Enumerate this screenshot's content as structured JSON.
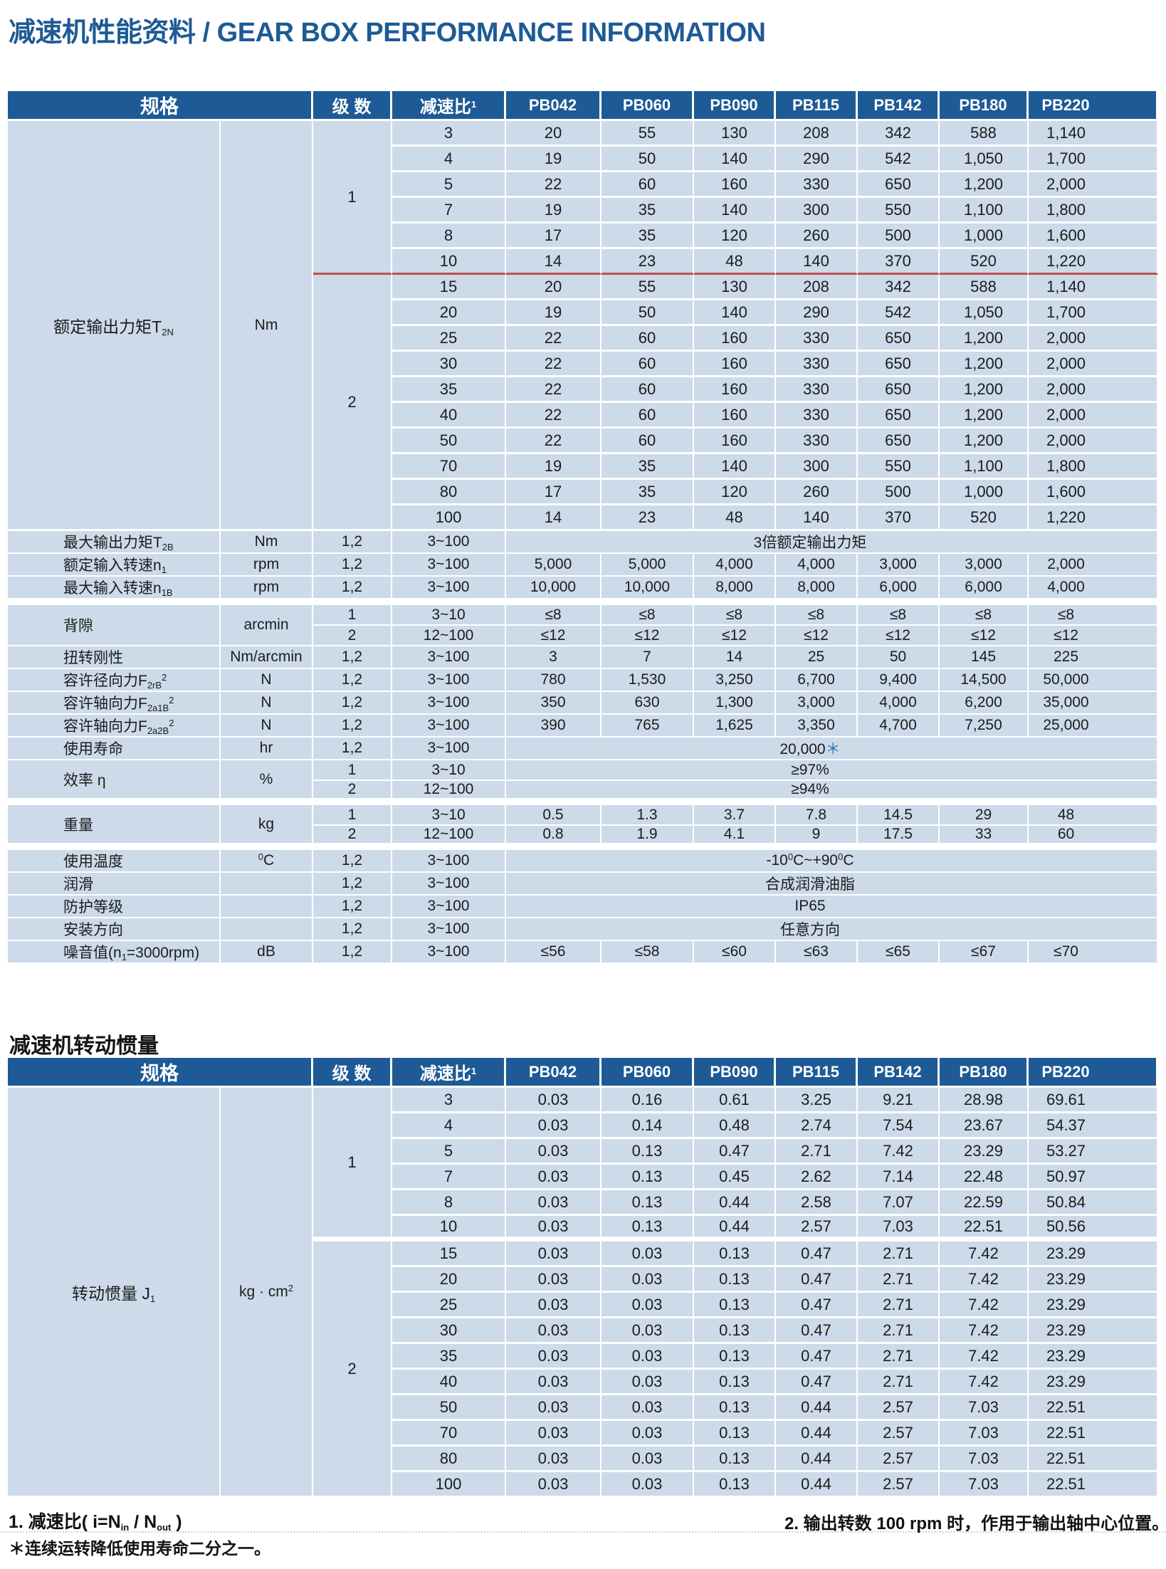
{
  "title": {
    "text": "减速机性能资料 / GEAR BOX PERFORMANCE INFORMATION"
  },
  "colors": {
    "header_blue": "#1d5a96",
    "row_blue": "#ccdae9",
    "red_line": "#c0504d",
    "accent_blue": "#2f74b5",
    "title_blue": "#1d5a96"
  },
  "columns": {
    "spec": "规格",
    "stages": "级 数",
    "ratio": [
      "减速比",
      {
        "sup": "1"
      }
    ],
    "models": [
      "PB042",
      "PB060",
      "PB090",
      "PB115",
      "PB142",
      "PB180",
      "PB220"
    ]
  },
  "table1": {
    "torque": {
      "label": [
        "额定输出力矩T",
        {
          "sub": "2N"
        }
      ],
      "unit": "Nm",
      "groups": [
        {
          "stage": "1",
          "rows": [
            {
              "ratio": "3",
              "values": [
                "20",
                "55",
                "130",
                "208",
                "342",
                "588",
                "1,140"
              ]
            },
            {
              "ratio": "4",
              "values": [
                "19",
                "50",
                "140",
                "290",
                "542",
                "1,050",
                "1,700"
              ]
            },
            {
              "ratio": "5",
              "values": [
                "22",
                "60",
                "160",
                "330",
                "650",
                "1,200",
                "2,000"
              ]
            },
            {
              "ratio": "7",
              "values": [
                "19",
                "35",
                "140",
                "300",
                "550",
                "1,100",
                "1,800"
              ]
            },
            {
              "ratio": "8",
              "values": [
                "17",
                "35",
                "120",
                "260",
                "500",
                "1,000",
                "1,600"
              ]
            },
            {
              "ratio": "10",
              "values": [
                "14",
                "23",
                "48",
                "140",
                "370",
                "520",
                "1,220"
              ]
            }
          ]
        },
        {
          "stage": "2",
          "rows": [
            {
              "ratio": "15",
              "values": [
                "20",
                "55",
                "130",
                "208",
                "342",
                "588",
                "1,140"
              ]
            },
            {
              "ratio": "20",
              "values": [
                "19",
                "50",
                "140",
                "290",
                "542",
                "1,050",
                "1,700"
              ]
            },
            {
              "ratio": "25",
              "values": [
                "22",
                "60",
                "160",
                "330",
                "650",
                "1,200",
                "2,000"
              ]
            },
            {
              "ratio": "30",
              "values": [
                "22",
                "60",
                "160",
                "330",
                "650",
                "1,200",
                "2,000"
              ]
            },
            {
              "ratio": "35",
              "values": [
                "22",
                "60",
                "160",
                "330",
                "650",
                "1,200",
                "2,000"
              ]
            },
            {
              "ratio": "40",
              "values": [
                "22",
                "60",
                "160",
                "330",
                "650",
                "1,200",
                "2,000"
              ]
            },
            {
              "ratio": "50",
              "values": [
                "22",
                "60",
                "160",
                "330",
                "650",
                "1,200",
                "2,000"
              ]
            },
            {
              "ratio": "70",
              "values": [
                "19",
                "35",
                "140",
                "300",
                "550",
                "1,100",
                "1,800"
              ]
            },
            {
              "ratio": "80",
              "values": [
                "17",
                "35",
                "120",
                "260",
                "500",
                "1,000",
                "1,600"
              ]
            },
            {
              "ratio": "100",
              "values": [
                "14",
                "23",
                "48",
                "140",
                "370",
                "520",
                "1,220"
              ]
            }
          ]
        }
      ]
    },
    "specs": [
      {
        "label": [
          "最大输出力矩T",
          {
            "sub": "2B"
          }
        ],
        "unit": "Nm",
        "stage": "1,2",
        "ratio": "3~100",
        "merged": "3倍额定输出力矩"
      },
      {
        "label": [
          "额定输入转速n",
          {
            "sub": "1"
          }
        ],
        "unit": "rpm",
        "stage": "1,2",
        "ratio": "3~100",
        "values": [
          "5,000",
          "5,000",
          "4,000",
          "4,000",
          "3,000",
          "3,000",
          "2,000"
        ]
      },
      {
        "label": [
          "最大输入转速n",
          {
            "sub": "1B"
          }
        ],
        "unit": "rpm",
        "stage": "1,2",
        "ratio": "3~100",
        "values": [
          "10,000",
          "10,000",
          "8,000",
          "8,000",
          "6,000",
          "6,000",
          "4,000"
        ],
        "gap": true
      },
      {
        "label": "背隙",
        "unit": "arcmin",
        "subrows": [
          {
            "stage": "1",
            "ratio": "3~10",
            "values": [
              "≤8",
              "≤8",
              "≤8",
              "≤8",
              "≤8",
              "≤8",
              "≤8"
            ]
          },
          {
            "stage": "2",
            "ratio": "12~100",
            "values": [
              "≤12",
              "≤12",
              "≤12",
              "≤12",
              "≤12",
              "≤12",
              "≤12"
            ]
          }
        ]
      },
      {
        "label": "扭转刚性",
        "unit": "Nm/arcmin",
        "stage": "1,2",
        "ratio": "3~100",
        "values": [
          "3",
          "7",
          "14",
          "25",
          "50",
          "145",
          "225"
        ]
      },
      {
        "label": [
          "容许径向力F",
          {
            "sub": "2rB"
          },
          {
            "sup": "2"
          }
        ],
        "unit": "N",
        "stage": "1,2",
        "ratio": "3~100",
        "values": [
          "780",
          "1,530",
          "3,250",
          "6,700",
          "9,400",
          "14,500",
          "50,000"
        ]
      },
      {
        "label": [
          "容许轴向力F",
          {
            "sub": "2a1B"
          },
          {
            "sup": "2"
          }
        ],
        "unit": "N",
        "stage": "1,2",
        "ratio": "3~100",
        "values": [
          "350",
          "630",
          "1,300",
          "3,000",
          "4,000",
          "6,200",
          "35,000"
        ]
      },
      {
        "label": [
          "容许轴向力F",
          {
            "sub": "2a2B"
          },
          {
            "sup": "2"
          }
        ],
        "unit": "N",
        "stage": "1,2",
        "ratio": "3~100",
        "values": [
          "390",
          "765",
          "1,625",
          "3,350",
          "4,700",
          "7,250",
          "25,000"
        ]
      },
      {
        "label": "使用寿命",
        "unit": "hr",
        "stage": "1,2",
        "ratio": "3~100",
        "merged": [
          "20,000",
          {
            "accent": "＊"
          }
        ]
      },
      {
        "label": "效率 η",
        "unit": "%",
        "subrows": [
          {
            "stage": "1",
            "ratio": "3~10",
            "merged": "≥97%"
          },
          {
            "stage": "2",
            "ratio": "12~100",
            "merged": "≥94%"
          }
        ],
        "gap": true
      },
      {
        "label": "重量",
        "unit": "kg",
        "subrows": [
          {
            "stage": "1",
            "ratio": "3~10",
            "values": [
              "0.5",
              "1.3",
              "3.7",
              "7.8",
              "14.5",
              "29",
              "48"
            ]
          },
          {
            "stage": "2",
            "ratio": "12~100",
            "values": [
              "0.8",
              "1.9",
              "4.1",
              "9",
              "17.5",
              "33",
              "60"
            ]
          }
        ],
        "gap": true
      },
      {
        "label": "使用温度",
        "unit": [
          {
            "sup": "0"
          },
          "C"
        ],
        "stage": "1,2",
        "ratio": "3~100",
        "merged": [
          "-10",
          {
            "sup": "0"
          },
          "C~+90",
          {
            "sup": "0"
          },
          "C"
        ]
      },
      {
        "label": "润滑",
        "unit": "",
        "stage": "1,2",
        "ratio": "3~100",
        "merged": "合成润滑油脂"
      },
      {
        "label": "防护等级",
        "unit": "",
        "stage": "1,2",
        "ratio": "3~100",
        "merged": "IP65"
      },
      {
        "label": "安装方向",
        "unit": "",
        "stage": "1,2",
        "ratio": "3~100",
        "merged": "任意方向"
      },
      {
        "label": [
          "噪音值(n",
          {
            "sub": "1"
          },
          "=3000rpm)"
        ],
        "unit": "dB",
        "stage": "1,2",
        "ratio": "3~100",
        "values": [
          "≤56",
          "≤58",
          "≤60",
          "≤63",
          "≤65",
          "≤67",
          "≤70"
        ]
      }
    ]
  },
  "table2": {
    "title": "减速机转动惯量",
    "inertia": {
      "label": [
        "转动惯量 J",
        {
          "sub": "1"
        }
      ],
      "unit": [
        "kg · cm",
        {
          "sup": "2"
        }
      ],
      "groups": [
        {
          "stage": "1",
          "rows": [
            {
              "ratio": "3",
              "values": [
                "0.03",
                "0.16",
                "0.61",
                "3.25",
                "9.21",
                "28.98",
                "69.61"
              ]
            },
            {
              "ratio": "4",
              "values": [
                "0.03",
                "0.14",
                "0.48",
                "2.74",
                "7.54",
                "23.67",
                "54.37"
              ]
            },
            {
              "ratio": "5",
              "values": [
                "0.03",
                "0.13",
                "0.47",
                "2.71",
                "7.42",
                "23.29",
                "53.27"
              ]
            },
            {
              "ratio": "7",
              "values": [
                "0.03",
                "0.13",
                "0.45",
                "2.62",
                "7.14",
                "22.48",
                "50.97"
              ]
            },
            {
              "ratio": "8",
              "values": [
                "0.03",
                "0.13",
                "0.44",
                "2.58",
                "7.07",
                "22.59",
                "50.84"
              ]
            },
            {
              "ratio": "10",
              "values": [
                "0.03",
                "0.13",
                "0.44",
                "2.57",
                "7.03",
                "22.51",
                "50.56"
              ]
            }
          ]
        },
        {
          "stage": "2",
          "rows": [
            {
              "ratio": "15",
              "values": [
                "0.03",
                "0.03",
                "0.13",
                "0.47",
                "2.71",
                "7.42",
                "23.29"
              ]
            },
            {
              "ratio": "20",
              "values": [
                "0.03",
                "0.03",
                "0.13",
                "0.47",
                "2.71",
                "7.42",
                "23.29"
              ]
            },
            {
              "ratio": "25",
              "values": [
                "0.03",
                "0.03",
                "0.13",
                "0.47",
                "2.71",
                "7.42",
                "23.29"
              ]
            },
            {
              "ratio": "30",
              "values": [
                "0.03",
                "0.03",
                "0.13",
                "0.47",
                "2.71",
                "7.42",
                "23.29"
              ]
            },
            {
              "ratio": "35",
              "values": [
                "0.03",
                "0.03",
                "0.13",
                "0.47",
                "2.71",
                "7.42",
                "23.29"
              ]
            },
            {
              "ratio": "40",
              "values": [
                "0.03",
                "0.03",
                "0.13",
                "0.47",
                "2.71",
                "7.42",
                "23.29"
              ]
            },
            {
              "ratio": "50",
              "values": [
                "0.03",
                "0.03",
                "0.13",
                "0.44",
                "2.57",
                "7.03",
                "22.51"
              ]
            },
            {
              "ratio": "70",
              "values": [
                "0.03",
                "0.03",
                "0.13",
                "0.44",
                "2.57",
                "7.03",
                "22.51"
              ]
            },
            {
              "ratio": "80",
              "values": [
                "0.03",
                "0.03",
                "0.13",
                "0.44",
                "2.57",
                "7.03",
                "22.51"
              ]
            },
            {
              "ratio": "100",
              "values": [
                "0.03",
                "0.03",
                "0.13",
                "0.44",
                "2.57",
                "7.03",
                "22.51"
              ]
            }
          ]
        }
      ]
    }
  },
  "footnotes": {
    "note1": [
      "1. 减速比( i=N",
      {
        "sub": "in"
      },
      " / N",
      {
        "sub": "out"
      },
      " )"
    ],
    "star": "＊连续运转降低使用寿命二分之一。",
    "note2": "2. 输出转数 100 rpm 时，作用于输出轴中心位置。"
  }
}
